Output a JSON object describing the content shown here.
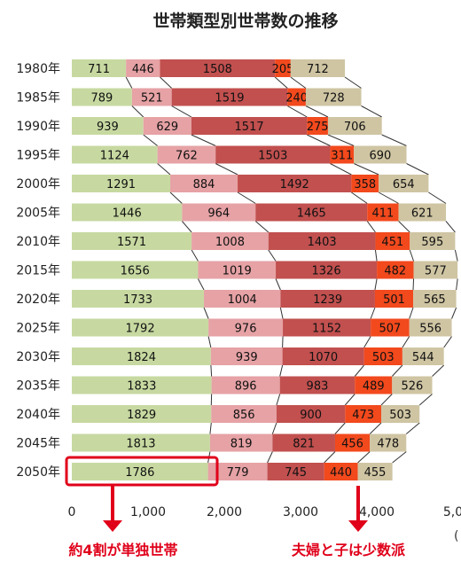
{
  "chart_data": {
    "type": "bar",
    "stacked": true,
    "orientation": "horizontal",
    "title": "世帯類型別世帯数の推移",
    "categories": [
      "1980年",
      "1985年",
      "1990年",
      "1995年",
      "2000年",
      "2005年",
      "2010年",
      "2015年",
      "2020年",
      "2025年",
      "2030年",
      "2035年",
      "2040年",
      "2045年",
      "2050年"
    ],
    "series": [
      {
        "values": [
          711,
          789,
          939,
          1124,
          1291,
          1446,
          1571,
          1656,
          1733,
          1792,
          1824,
          1833,
          1829,
          1813,
          1786
        ],
        "color": "#c7d9a1"
      },
      {
        "values": [
          446,
          521,
          629,
          762,
          884,
          964,
          1008,
          1019,
          1004,
          976,
          939,
          896,
          856,
          819,
          779
        ],
        "color": "#e6a2a5"
      },
      {
        "values": [
          1508,
          1519,
          1517,
          1503,
          1492,
          1465,
          1403,
          1326,
          1239,
          1152,
          1070,
          983,
          900,
          821,
          745
        ],
        "color": "#c1504f"
      },
      {
        "values": [
          205,
          240,
          275,
          311,
          358,
          411,
          451,
          482,
          501,
          507,
          503,
          489,
          473,
          456,
          440
        ],
        "color": "#f2491d"
      },
      {
        "values": [
          712,
          728,
          706,
          690,
          654,
          621,
          595,
          577,
          565,
          556,
          544,
          526,
          503,
          478,
          455
        ],
        "color": "#cfc5a3"
      }
    ],
    "x_ticks": [
      "0",
      "1,000",
      "2,000",
      "3,000",
      "4,000",
      "5,0"
    ],
    "x_unit_fragment": "(",
    "xlim": [
      0,
      5000
    ],
    "grid": false,
    "annotations": {
      "left_label": "約4割が単独世帯",
      "right_label": "夫婦と子は少数派",
      "highlight_category": "2050年"
    }
  }
}
